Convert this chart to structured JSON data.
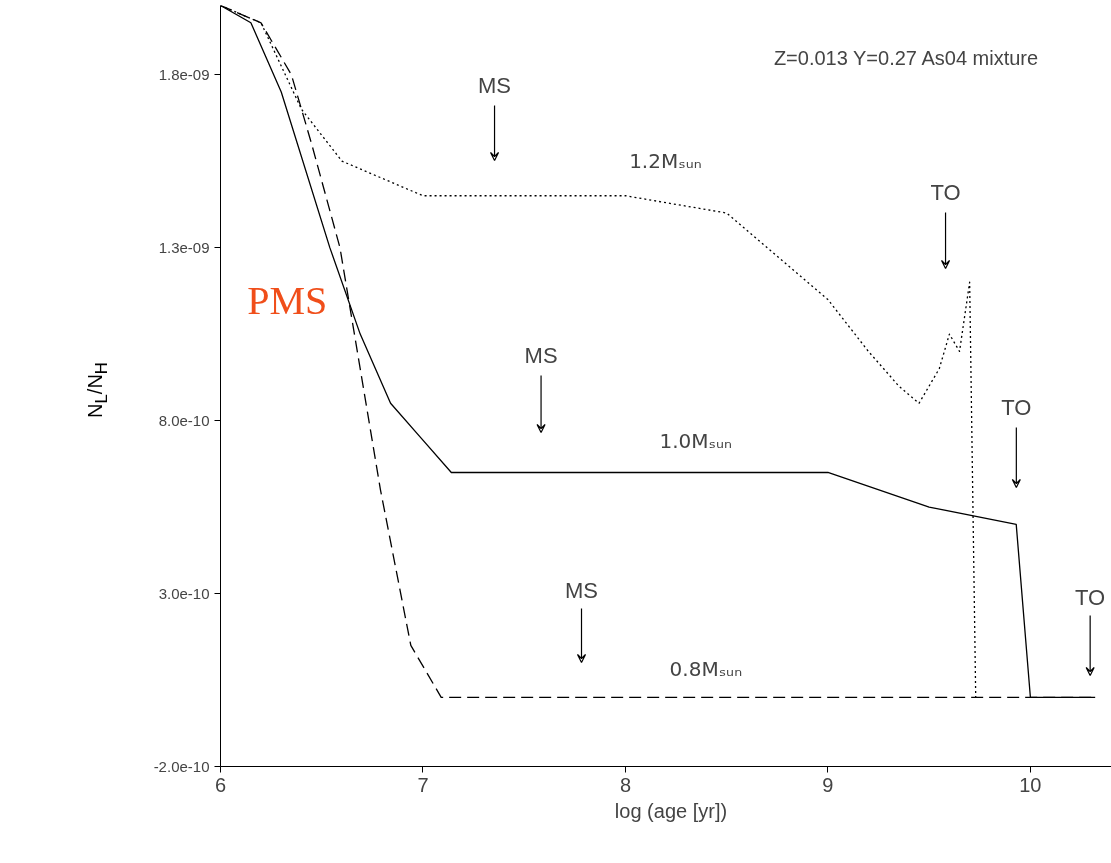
{
  "chart_data": {
    "type": "line",
    "xlabel": "log (age [yr])",
    "ylabel": "N$_{L}$/N$_{H}$",
    "xlim": [
      6,
      10.45
    ],
    "ylim": [
      -2e-10,
      2e-09
    ],
    "xticks": [
      6,
      7,
      8,
      9,
      10
    ],
    "yticks": [
      {
        "value": -2e-10,
        "label": "-2.0e-10"
      },
      {
        "value": 3e-10,
        "label": "3.0e-10"
      },
      {
        "value": 8e-10,
        "label": "8.0e-10"
      },
      {
        "value": 1.3e-09,
        "label": "1.3e-09"
      },
      {
        "value": 1.8e-09,
        "label": "1.8e-09"
      }
    ],
    "series": [
      {
        "color": "#000000",
        "line_style": "dotted",
        "x": [
          6,
          6.2,
          6.4,
          6.6,
          6.8,
          7.0,
          7.5,
          8.0,
          8.5,
          8.8,
          9.0,
          9.2,
          9.35,
          9.45,
          9.55,
          9.6,
          9.65,
          9.7,
          9.73,
          9.74
        ],
        "values": [
          2e-09,
          1.95e-09,
          1.7e-09,
          1.55e-09,
          1.5e-09,
          1.45e-09,
          1.45e-09,
          1.45e-09,
          1.4e-09,
          1.25e-09,
          1.15e-09,
          1e-09,
          9e-10,
          8.5e-10,
          9.5e-10,
          1.05e-09,
          1e-09,
          1.2e-09,
          0.0,
          0.0
        ]
      },
      {
        "color": "#000000",
        "line_style": "solid",
        "x": [
          6,
          6.15,
          6.3,
          6.54,
          6.69,
          6.84,
          6.99,
          7.14,
          7.5,
          8.0,
          8.5,
          9.0,
          9.5,
          9.93,
          10.0,
          10.32
        ],
        "values": [
          2e-09,
          1.95e-09,
          1.75e-09,
          1.3e-09,
          1.05e-09,
          8.5e-10,
          7.5e-10,
          6.5e-10,
          6.5e-10,
          6.5e-10,
          6.5e-10,
          6.5e-10,
          5.5e-10,
          5e-10,
          0.0,
          0.0
        ]
      },
      {
        "color": "#000000",
        "line_style": "dashed",
        "x": [
          6,
          6.2,
          6.35,
          6.45,
          6.59,
          6.79,
          6.94,
          7.09,
          7.34,
          8.0,
          9.0,
          10.32
        ],
        "values": [
          2e-09,
          1.95e-09,
          1.8e-09,
          1.6e-09,
          1.3e-09,
          6e-10,
          1.5e-10,
          0.0,
          0.0,
          0.0,
          0.0,
          0.0
        ]
      }
    ],
    "annotations": [
      "Z=0.013 Y=0.27 As04 mixture",
      "MS",
      "TO",
      "MS",
      "TO",
      "MS",
      "TO",
      "1.2Mₛᵤₙ",
      "1.0Mₛᵤₙ",
      "0.8Mₛᵤₙ",
      "PMS"
    ]
  }
}
